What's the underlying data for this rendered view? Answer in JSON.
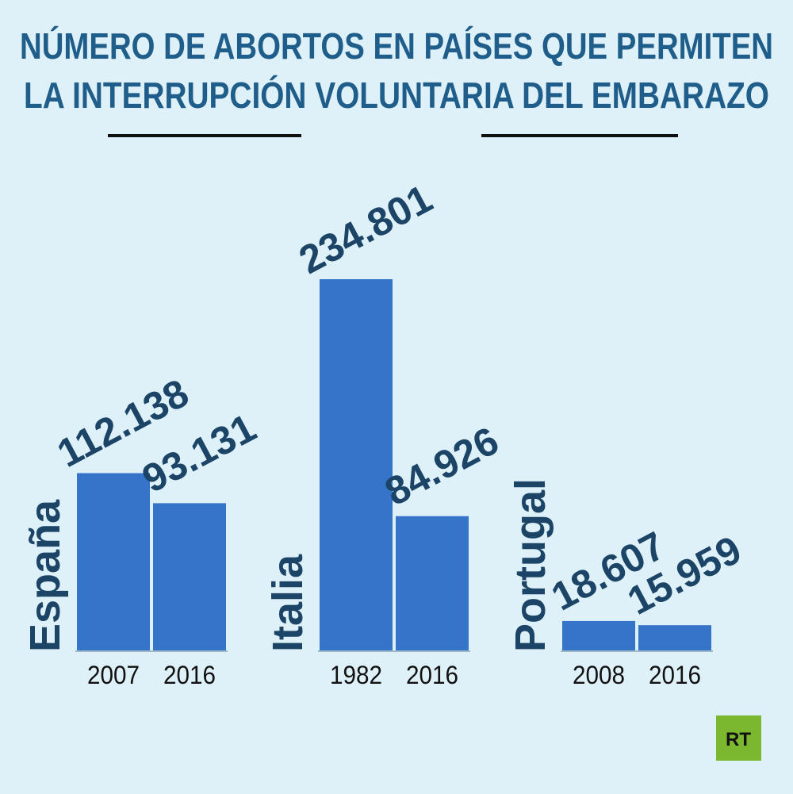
{
  "chart_data": {
    "type": "bar",
    "title": [
      "NÚMERO DE ABORTOS EN PAÍSES QUE PERMITEN",
      "LA INTERRUPCIÓN VOLUNTARIA DEL EMBARAZO"
    ],
    "color": "#3574c8",
    "groups": [
      {
        "name": "España",
        "categories": [
          "2007",
          "2016"
        ],
        "values": [
          112138,
          93131
        ],
        "value_labels": [
          "112.138",
          "93.131"
        ]
      },
      {
        "name": "Italia",
        "categories": [
          "1982",
          "2016"
        ],
        "values": [
          234801,
          84926
        ],
        "value_labels": [
          "234.801",
          "84.926"
        ]
      },
      {
        "name": "Portugal",
        "categories": [
          "2008",
          "2016"
        ],
        "values": [
          18607,
          15959
        ],
        "value_labels": [
          "18.607",
          "15.959"
        ]
      }
    ],
    "logo": "RT"
  }
}
